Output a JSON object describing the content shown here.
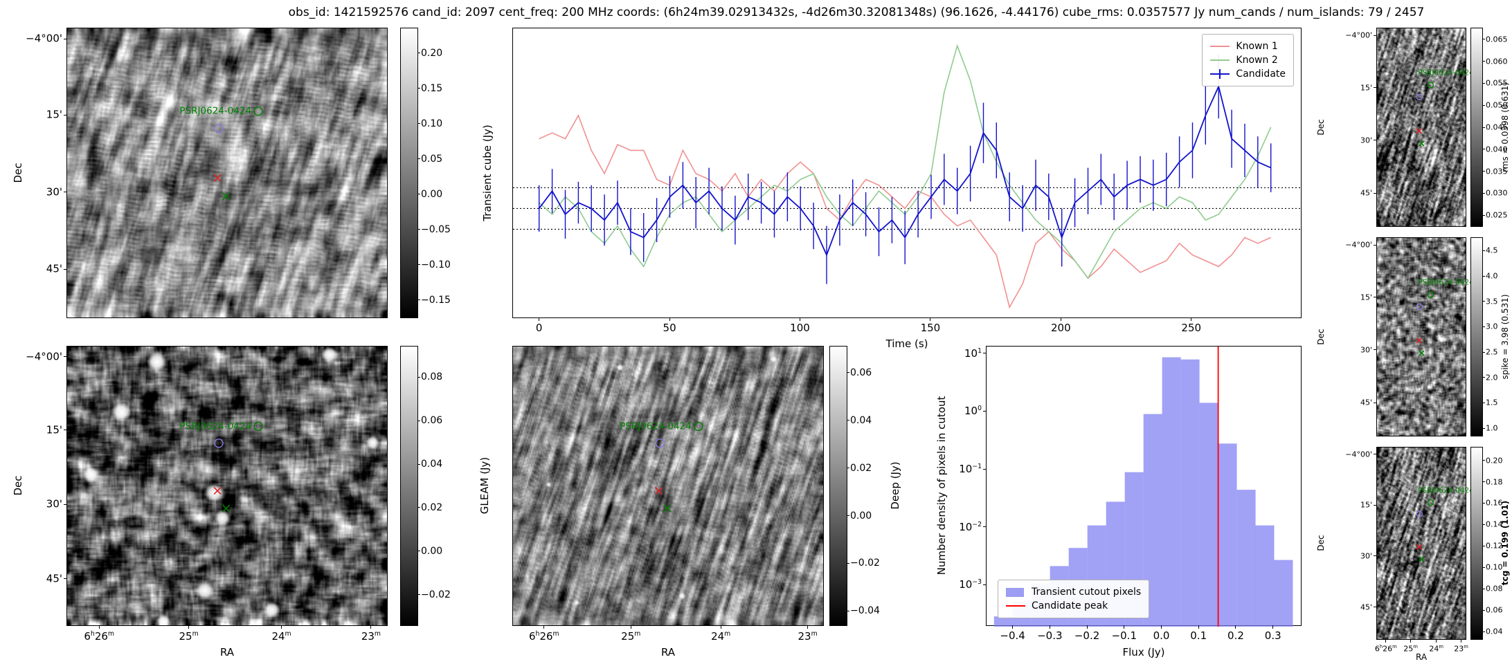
{
  "title": "obs_id: 1421592576 cand_id: 2097 cent_freq: 200 MHz coords: (6h24m39.02913432s, -4d26m30.32081348s) (96.1626, -4.44176) cube_rms: 0.0357577 Jy num_cands / num_islands: 79 / 2457",
  "source_label": "PSRJ0624-0424",
  "axes": {
    "ra_label": "RA",
    "dec_label": "Dec",
    "ra_ticks": [
      "6h26m",
      "25m",
      "24m",
      "23m"
    ],
    "dec_ticks": [
      "−4°00'",
      "15'",
      "30'",
      "45'"
    ]
  },
  "markers": {
    "psr_circle": {
      "x": 0.595,
      "y": 0.285,
      "color": "green"
    },
    "unknown_circle": {
      "x": 0.472,
      "y": 0.345,
      "color": "#8877dd"
    },
    "candidate_x": {
      "x": 0.468,
      "y": 0.515,
      "color": "#e02020"
    },
    "second_x": {
      "x": 0.495,
      "y": 0.578,
      "color": "green"
    }
  },
  "colorbars": {
    "transient": {
      "label": "Transient cube (Jy)",
      "ticks": [
        "0.20",
        "0.15",
        "0.10",
        "0.05",
        "0.00",
        "−0.05",
        "−0.10",
        "−0.15"
      ],
      "tick_values": [
        0.2,
        0.15,
        0.1,
        0.05,
        0.0,
        -0.05,
        -0.1,
        -0.15
      ],
      "range": [
        -0.175,
        0.235
      ]
    },
    "gleam": {
      "label": "GLEAM (Jy)",
      "ticks": [
        "0.08",
        "0.06",
        "0.04",
        "0.02",
        "0.00",
        "−0.02"
      ],
      "tick_values": [
        0.08,
        0.06,
        0.04,
        0.02,
        0.0,
        -0.02
      ],
      "range": [
        -0.034,
        0.094
      ]
    },
    "deep": {
      "label": "Deep (Jy)",
      "ticks": [
        "0.06",
        "0.04",
        "0.02",
        "0.00",
        "−0.02",
        "−0.04"
      ],
      "tick_values": [
        0.06,
        0.04,
        0.02,
        0.0,
        -0.02,
        -0.04
      ],
      "range": [
        -0.046,
        0.071
      ]
    },
    "rms": {
      "label": "rms = 0.0398 (0.631)",
      "ticks": [
        "0.065",
        "0.060",
        "0.055",
        "0.050",
        "0.045",
        "0.040",
        "0.035",
        "0.030",
        "0.025"
      ],
      "tick_values": [
        0.065,
        0.06,
        0.055,
        0.05,
        0.045,
        0.04,
        0.035,
        0.03,
        0.025
      ],
      "range": [
        0.0225,
        0.0675
      ]
    },
    "spike": {
      "label": "spike = 3.98 (0.531)",
      "ticks": [
        "4.5",
        "4.0",
        "3.5",
        "3.0",
        "2.5",
        "2.0",
        "1.5",
        "1.0"
      ],
      "tick_values": [
        4.5,
        4.0,
        3.5,
        3.0,
        2.5,
        2.0,
        1.5,
        1.0
      ],
      "range": [
        0.85,
        4.75
      ]
    },
    "tcg": {
      "label": "tcg = 0.199 (1.01)",
      "bold": true,
      "ticks": [
        "0.20",
        "0.18",
        "0.16",
        "0.14",
        "0.12",
        "0.10",
        "0.08",
        "0.06",
        "0.04"
      ],
      "tick_values": [
        0.2,
        0.18,
        0.16,
        0.14,
        0.12,
        0.1,
        0.08,
        0.06,
        0.04
      ],
      "range": [
        0.033,
        0.212
      ]
    }
  },
  "chart_data": [
    {
      "type": "line",
      "name": "lightcurve",
      "xlabel": "Time (s)",
      "ylabel": "",
      "xlim": [
        -10,
        292
      ],
      "ylim": [
        -0.19,
        0.31
      ],
      "xticks": [
        0,
        50,
        100,
        150,
        200,
        250
      ],
      "xtick_labels": [
        "0",
        "50",
        "100",
        "150",
        "200",
        "250"
      ],
      "hlines": [
        0.0357577,
        0.0,
        -0.0357577
      ],
      "legend_position": "upper right",
      "x": [
        0,
        5,
        10,
        15,
        20,
        25,
        30,
        35,
        40,
        45,
        50,
        55,
        60,
        65,
        70,
        75,
        80,
        85,
        90,
        95,
        100,
        105,
        110,
        115,
        120,
        125,
        130,
        135,
        140,
        145,
        150,
        155,
        160,
        165,
        170,
        175,
        180,
        185,
        190,
        195,
        200,
        205,
        210,
        215,
        220,
        225,
        230,
        235,
        240,
        245,
        250,
        255,
        260,
        265,
        270,
        275,
        280
      ],
      "series": [
        {
          "name": "Known 1",
          "color": "#f19090",
          "values": [
            0.12,
            0.13,
            0.12,
            0.16,
            0.1,
            0.06,
            0.11,
            0.1,
            0.1,
            0.05,
            0.04,
            0.1,
            0.06,
            0.05,
            0.03,
            0.06,
            0.02,
            0.05,
            0.03,
            0.06,
            0.08,
            0.06,
            0.0,
            -0.02,
            0.02,
            0.05,
            0.04,
            0.02,
            0.0,
            0.03,
            0.02,
            -0.01,
            -0.03,
            -0.02,
            -0.05,
            -0.08,
            -0.17,
            -0.13,
            -0.06,
            -0.04,
            -0.07,
            -0.09,
            -0.12,
            -0.1,
            -0.07,
            -0.09,
            -0.11,
            -0.1,
            -0.09,
            -0.06,
            -0.08,
            -0.09,
            -0.1,
            -0.08,
            -0.05,
            -0.06,
            -0.05
          ]
        },
        {
          "name": "Known 2",
          "color": "#8fcb8f",
          "values": [
            0.01,
            -0.01,
            0.02,
            0.0,
            -0.04,
            -0.06,
            -0.03,
            -0.07,
            -0.1,
            -0.05,
            -0.01,
            0.01,
            0.02,
            -0.01,
            -0.04,
            -0.02,
            0.0,
            0.02,
            0.04,
            0.03,
            0.05,
            0.06,
            0.02,
            -0.01,
            -0.03,
            0.0,
            0.03,
            0.01,
            -0.01,
            0.02,
            0.06,
            0.2,
            0.28,
            0.22,
            0.13,
            0.08,
            0.04,
            0.01,
            -0.02,
            -0.04,
            -0.06,
            -0.09,
            -0.12,
            -0.08,
            -0.04,
            -0.02,
            0.0,
            0.01,
            0.0,
            0.02,
            0.01,
            -0.02,
            -0.01,
            0.02,
            0.05,
            0.09,
            0.14
          ]
        },
        {
          "name": "Candidate",
          "color": "#1212cc",
          "values": [
            0.0,
            0.03,
            -0.01,
            0.01,
            0.0,
            -0.02,
            0.01,
            -0.04,
            -0.05,
            -0.02,
            0.02,
            0.04,
            0.01,
            0.03,
            0.0,
            -0.02,
            0.02,
            0.01,
            -0.01,
            0.02,
            0.0,
            -0.03,
            -0.08,
            -0.02,
            0.01,
            -0.01,
            -0.04,
            -0.02,
            -0.05,
            -0.01,
            0.02,
            0.05,
            0.03,
            0.06,
            0.13,
            0.1,
            0.02,
            0.0,
            0.04,
            0.02,
            -0.05,
            0.01,
            0.03,
            0.05,
            0.02,
            0.04,
            0.05,
            0.04,
            0.05,
            0.08,
            0.1,
            0.16,
            0.21,
            0.12,
            0.1,
            0.08,
            0.07
          ],
          "errors": [
            0.04,
            0.038,
            0.042,
            0.036,
            0.04,
            0.044,
            0.038,
            0.04,
            0.042,
            0.038,
            0.036,
            0.04,
            0.044,
            0.04,
            0.038,
            0.042,
            0.04,
            0.036,
            0.04,
            0.042,
            0.038,
            0.04,
            0.05,
            0.044,
            0.04,
            0.038,
            0.042,
            0.04,
            0.046,
            0.04,
            0.038,
            0.044,
            0.04,
            0.048,
            0.052,
            0.048,
            0.042,
            0.04,
            0.044,
            0.04,
            0.05,
            0.042,
            0.04,
            0.044,
            0.04,
            0.042,
            0.04,
            0.044,
            0.046,
            0.044,
            0.048,
            0.05,
            0.055,
            0.05,
            0.046,
            0.044,
            0.042
          ]
        }
      ]
    },
    {
      "type": "histogram",
      "name": "flux-histogram",
      "xlabel": "Flux (Jy)",
      "ylabel": "Number density of pixels in cutout",
      "yscale": "log",
      "xlim": [
        -0.47,
        0.375
      ],
      "ylim": [
        0.0002,
        13
      ],
      "xticks": [
        -0.4,
        -0.3,
        -0.2,
        -0.1,
        0.0,
        0.1,
        0.2,
        0.3
      ],
      "xtick_labels": [
        "−0.4",
        "−0.3",
        "−0.2",
        "−0.1",
        "0.0",
        "0.1",
        "0.2",
        "0.3"
      ],
      "ytick_exponents": [
        1,
        0,
        -1,
        -2,
        -3
      ],
      "bin_width": 0.05,
      "bin_centers": [
        -0.425,
        -0.375,
        -0.325,
        -0.275,
        -0.225,
        -0.175,
        -0.125,
        -0.075,
        -0.025,
        0.025,
        0.075,
        0.125,
        0.175,
        0.225,
        0.275,
        0.325
      ],
      "densities": [
        0.0003,
        0.00055,
        0.0011,
        0.0022,
        0.0045,
        0.011,
        0.028,
        0.09,
        0.9,
        8.5,
        7.8,
        1.4,
        0.28,
        0.045,
        0.011,
        0.0028
      ],
      "candidate_peak": 0.15,
      "bar_color": "#7d7df2",
      "line_color": "#ff0000",
      "legend": [
        "Transient cutout pixels",
        "Candidate peak"
      ]
    }
  ]
}
